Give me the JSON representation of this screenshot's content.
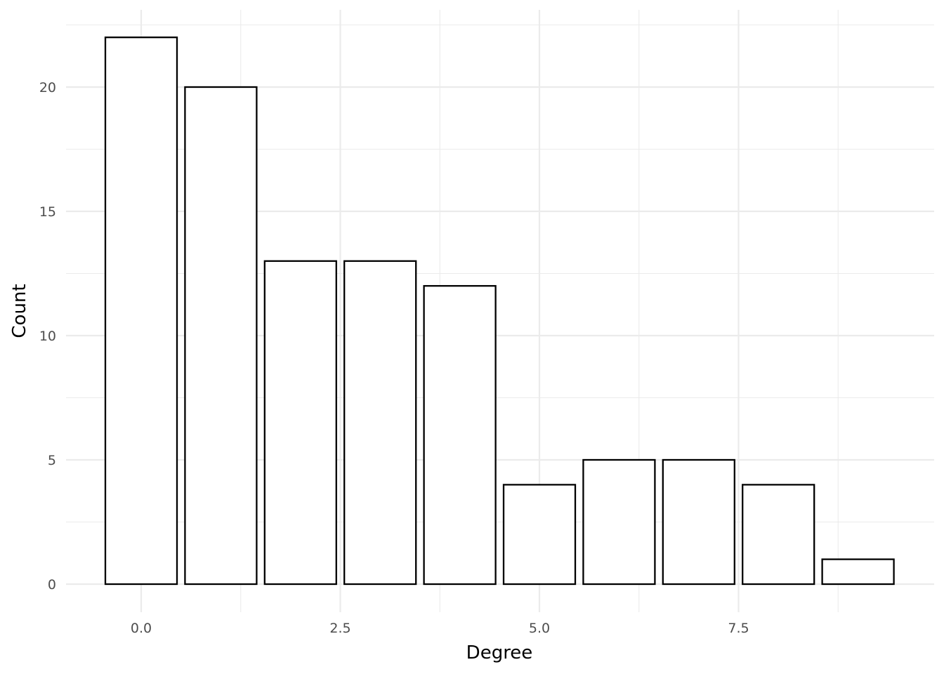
{
  "chart_data": {
    "type": "bar",
    "x": [
      0,
      1,
      2,
      3,
      4,
      5,
      6,
      7,
      8,
      9
    ],
    "values": [
      22,
      20,
      13,
      13,
      12,
      4,
      5,
      5,
      4,
      1
    ],
    "title": "",
    "xlabel": "Degree",
    "ylabel": "Count",
    "xlim": [
      -0.5,
      9.5
    ],
    "ylim": [
      0,
      22
    ],
    "x_ticks": [
      0,
      2.5,
      5,
      7.5
    ],
    "x_tick_labels": [
      "0.0",
      "2.5",
      "5.0",
      "7.5"
    ],
    "y_ticks": [
      0,
      5,
      10,
      15,
      20
    ],
    "y_tick_labels": [
      "0",
      "5",
      "10",
      "15",
      "20"
    ],
    "grid": true,
    "legend": "none",
    "colors": {
      "bar_fill": "#ffffff",
      "bar_outline": "#000000",
      "grid": "#ebebeb",
      "tick_text": "#4d4d4d",
      "axis_title_text": "#000000"
    }
  }
}
